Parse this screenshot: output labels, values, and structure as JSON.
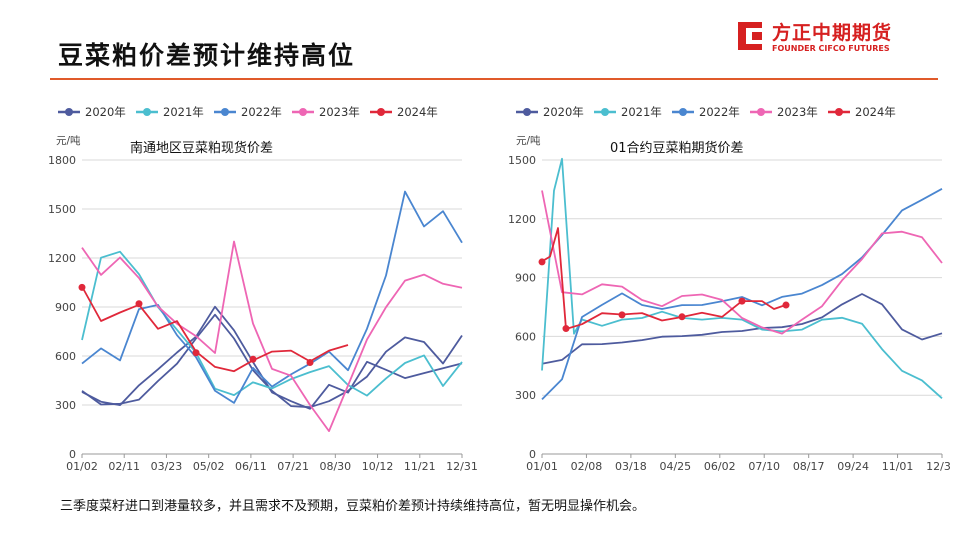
{
  "title": "豆菜粕价差预计维持高位",
  "brand": {
    "cn": "方正中期期货",
    "en": "FOUNDER CIFCO FUTURES",
    "color": "#d62020"
  },
  "footer": "三季度菜籽进口到港量较多，并且需求不及预期，豆菜粕价差预计持续维持高位，暂无明显操作机会。",
  "colors": {
    "2020年": "#4e5b9e",
    "2021年": "#4bbecf",
    "2022年": "#4a86d0",
    "2023年": "#ee66b4",
    "2024年": "#e0283a"
  },
  "chart_data": [
    {
      "type": "line",
      "title": "南通地区豆菜粕现货价差",
      "unit": "元/吨",
      "ylim": [
        0,
        1800
      ],
      "yticks": [
        0,
        300,
        600,
        900,
        1200,
        1500,
        1800
      ],
      "xticks": [
        "01/02",
        "02/11",
        "03/23",
        "05/02",
        "06/11",
        "07/21",
        "08/30",
        "10/12",
        "11/21",
        "12/31"
      ],
      "series": [
        {
          "name": "2020年",
          "x": [
            0,
            5,
            10,
            15,
            20,
            25,
            30,
            35,
            40,
            45,
            50,
            55,
            60,
            65,
            70,
            75,
            80,
            85,
            90,
            95,
            100
          ],
          "values": [
            380,
            320,
            300,
            420,
            520,
            620,
            720,
            900,
            760,
            560,
            380,
            320,
            280,
            420,
            380,
            560,
            520,
            460,
            500,
            520,
            560
          ]
        },
        {
          "name": "2020年",
          "x": [
            0,
            5,
            10,
            15,
            20,
            25,
            30,
            35,
            40,
            45,
            50,
            55,
            60,
            65,
            70,
            75,
            80,
            85,
            90,
            95,
            100
          ],
          "values": [
            380,
            310,
            300,
            340,
            440,
            560,
            700,
            860,
            700,
            520,
            380,
            300,
            280,
            330,
            380,
            480,
            620,
            720,
            680,
            560,
            720
          ]
        },
        {
          "name": "2021年",
          "x": [
            0,
            5,
            10,
            15,
            20,
            25,
            30,
            35,
            40,
            45,
            50,
            55,
            60,
            65,
            70,
            75,
            80,
            85,
            90,
            95,
            100
          ],
          "values": [
            700,
            1200,
            1240,
            1100,
            900,
            760,
            620,
            400,
            360,
            440,
            400,
            460,
            500,
            540,
            420,
            360,
            460,
            560,
            600,
            420,
            560
          ]
        },
        {
          "name": "2022年",
          "x": [
            0,
            5,
            10,
            15,
            20,
            25,
            30,
            35,
            40,
            45,
            50,
            55,
            60,
            65,
            70,
            75,
            80,
            85,
            90,
            95,
            100
          ],
          "values": [
            560,
            640,
            580,
            880,
            920,
            720,
            600,
            380,
            320,
            520,
            420,
            480,
            560,
            620,
            520,
            760,
            1100,
            1600,
            1400,
            1480,
            1300
          ]
        },
        {
          "name": "2023年",
          "x": [
            0,
            5,
            10,
            15,
            20,
            25,
            30,
            35,
            40,
            45,
            50,
            55,
            60,
            65,
            70,
            75,
            80,
            85,
            90,
            95,
            100
          ],
          "values": [
            1260,
            1100,
            1200,
            1080,
            900,
            800,
            720,
            620,
            1300,
            800,
            520,
            480,
            300,
            140,
            420,
            700,
            900,
            1060,
            1100,
            1040,
            1020
          ]
        },
        {
          "name": "2024年",
          "x": [
            0,
            5,
            10,
            15,
            20,
            25,
            30,
            35,
            40,
            45,
            50,
            55,
            60,
            65,
            70
          ],
          "values": [
            1020,
            820,
            860,
            920,
            760,
            820,
            620,
            540,
            500,
            580,
            620,
            640,
            560,
            640,
            660
          ]
        }
      ]
    },
    {
      "type": "line",
      "title": "01合约豆菜粕期货价差",
      "unit": "元/吨",
      "ylim": [
        0,
        1500
      ],
      "yticks": [
        0,
        300,
        600,
        900,
        1200,
        1500
      ],
      "xticks": [
        "01/01",
        "02/08",
        "03/18",
        "04/25",
        "06/02",
        "07/10",
        "08/17",
        "09/24",
        "11/01",
        "12/31"
      ],
      "series": [
        {
          "name": "2020年",
          "x": [
            0,
            5,
            10,
            15,
            20,
            25,
            30,
            35,
            40,
            45,
            50,
            55,
            60,
            65,
            70,
            75,
            80,
            85,
            90,
            95,
            100
          ],
          "values": [
            460,
            480,
            560,
            560,
            570,
            580,
            600,
            600,
            610,
            620,
            630,
            640,
            650,
            660,
            700,
            760,
            820,
            760,
            640,
            580,
            620
          ]
        },
        {
          "name": "2021年",
          "x": [
            0,
            3,
            5,
            8,
            10,
            15,
            20,
            25,
            30,
            35,
            40,
            45,
            50,
            55,
            60,
            65,
            70,
            75,
            80,
            85,
            90,
            95,
            100
          ],
          "values": [
            420,
            1350,
            1500,
            620,
            680,
            660,
            680,
            700,
            720,
            700,
            680,
            700,
            680,
            640,
            620,
            640,
            680,
            700,
            660,
            540,
            420,
            380,
            280
          ]
        },
        {
          "name": "2022年",
          "x": [
            0,
            5,
            10,
            15,
            20,
            25,
            30,
            35,
            40,
            45,
            50,
            55,
            60,
            65,
            70,
            75,
            80,
            85,
            90,
            95,
            100
          ],
          "values": [
            280,
            380,
            700,
            760,
            820,
            760,
            740,
            760,
            760,
            780,
            800,
            760,
            800,
            820,
            860,
            920,
            1000,
            1120,
            1240,
            1300,
            1350
          ]
        },
        {
          "name": "2023年",
          "x": [
            0,
            5,
            10,
            15,
            20,
            25,
            30,
            35,
            40,
            45,
            50,
            55,
            60,
            65,
            70,
            75,
            80,
            85,
            90,
            95,
            100
          ],
          "values": [
            1350,
            820,
            820,
            860,
            860,
            780,
            760,
            800,
            820,
            780,
            700,
            640,
            620,
            680,
            760,
            880,
            1000,
            1120,
            1140,
            1100,
            980
          ]
        },
        {
          "name": "2024年",
          "x": [
            0,
            2,
            4,
            6,
            10,
            15,
            20,
            25,
            30,
            35,
            40,
            45,
            50,
            55,
            58,
            61
          ],
          "values": [
            980,
            1010,
            1150,
            640,
            660,
            720,
            710,
            720,
            680,
            700,
            720,
            700,
            780,
            780,
            740,
            760
          ]
        }
      ]
    }
  ]
}
